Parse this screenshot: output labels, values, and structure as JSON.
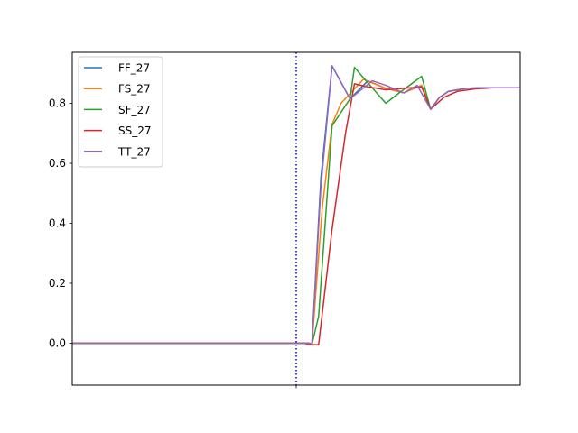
{
  "chart_data": {
    "type": "line",
    "title": "",
    "xlabel": "",
    "ylabel": "",
    "x": [
      0,
      1,
      2,
      3,
      4,
      5,
      6,
      7,
      8,
      9,
      10,
      11,
      12,
      13,
      14,
      15,
      16,
      17,
      18,
      19,
      20,
      21,
      22,
      23,
      24,
      25,
      26,
      27,
      28,
      29,
      30,
      31,
      32,
      33,
      34,
      35,
      36,
      37,
      38,
      39,
      40,
      41,
      42,
      43,
      44,
      45,
      46,
      47,
      48,
      49,
      50,
      51,
      52,
      53,
      54,
      55,
      56,
      57,
      58,
      59,
      60,
      61,
      62,
      63,
      64,
      65,
      66,
      67,
      68,
      69,
      70,
      71,
      72,
      73,
      74,
      75,
      76,
      77,
      78,
      79,
      80,
      81,
      82,
      83,
      84,
      85,
      86,
      87,
      88,
      89,
      90,
      91,
      92,
      93,
      94,
      95,
      96,
      97,
      98,
      99,
      100
    ],
    "xlim": [
      0,
      100
    ],
    "ylim": [
      -0.14,
      0.97
    ],
    "y_ticks": [
      0.0,
      0.2,
      0.4,
      0.6,
      0.8
    ],
    "y_tick_labels": [
      "0.0",
      "0.2",
      "0.4",
      "0.6",
      "0.8"
    ],
    "vline_x": 50,
    "vline_color": "#0000cc",
    "legend_position": "upper-left",
    "grid": false,
    "series": [
      {
        "name": "FF_27",
        "color": "#1f77b4",
        "points": [
          [
            0,
            0
          ],
          [
            53,
            0
          ],
          [
            53.5,
            -0.005
          ],
          [
            55.5,
            0.55
          ],
          [
            58,
            0.925
          ],
          [
            62,
            0.815
          ],
          [
            66,
            0.875
          ],
          [
            70,
            0.85
          ],
          [
            74,
            0.835
          ],
          [
            78,
            0.86
          ],
          [
            80,
            0.78
          ],
          [
            82,
            0.82
          ],
          [
            84,
            0.84
          ],
          [
            88,
            0.85
          ],
          [
            92,
            0.852
          ],
          [
            100,
            0.852
          ]
        ]
      },
      {
        "name": "FS_27",
        "color": "#ff7f0e",
        "points": [
          [
            0,
            0
          ],
          [
            53,
            0
          ],
          [
            53.5,
            -0.005
          ],
          [
            55.8,
            0.45
          ],
          [
            58,
            0.73
          ],
          [
            60,
            0.8
          ],
          [
            65,
            0.88
          ],
          [
            70,
            0.85
          ],
          [
            74,
            0.835
          ],
          [
            78,
            0.86
          ],
          [
            80,
            0.78
          ],
          [
            82,
            0.82
          ],
          [
            84,
            0.84
          ],
          [
            88,
            0.85
          ],
          [
            92,
            0.852
          ],
          [
            100,
            0.852
          ]
        ]
      },
      {
        "name": "SF_27",
        "color": "#2ca02c",
        "points": [
          [
            0,
            0
          ],
          [
            53,
            0
          ],
          [
            53.5,
            -0.005
          ],
          [
            55,
            0.09
          ],
          [
            58,
            0.725
          ],
          [
            62,
            0.815
          ],
          [
            63,
            0.92
          ],
          [
            65,
            0.885
          ],
          [
            70,
            0.8
          ],
          [
            73,
            0.835
          ],
          [
            78,
            0.89
          ],
          [
            80,
            0.78
          ],
          [
            82,
            0.82
          ],
          [
            84,
            0.84
          ],
          [
            88,
            0.85
          ],
          [
            92,
            0.852
          ],
          [
            100,
            0.852
          ]
        ]
      },
      {
        "name": "SS_27",
        "color": "#d62728",
        "points": [
          [
            0,
            0
          ],
          [
            52,
            0
          ],
          [
            52.5,
            -0.005
          ],
          [
            55,
            -0.005
          ],
          [
            58,
            0.38
          ],
          [
            61,
            0.7
          ],
          [
            63,
            0.865
          ],
          [
            66,
            0.855
          ],
          [
            70,
            0.845
          ],
          [
            74,
            0.85
          ],
          [
            78,
            0.855
          ],
          [
            80,
            0.78
          ],
          [
            83,
            0.82
          ],
          [
            86,
            0.84
          ],
          [
            90,
            0.848
          ],
          [
            94,
            0.852
          ],
          [
            100,
            0.852
          ]
        ]
      },
      {
        "name": "TT_27",
        "color": "#9467bd",
        "points": [
          [
            0,
            0
          ],
          [
            53,
            0
          ],
          [
            53.5,
            -0.005
          ],
          [
            55.5,
            0.52
          ],
          [
            58,
            0.925
          ],
          [
            62,
            0.815
          ],
          [
            67,
            0.875
          ],
          [
            70,
            0.86
          ],
          [
            74,
            0.835
          ],
          [
            77,
            0.86
          ],
          [
            80,
            0.78
          ],
          [
            82,
            0.82
          ],
          [
            84,
            0.84
          ],
          [
            88,
            0.85
          ],
          [
            92,
            0.852
          ],
          [
            100,
            0.852
          ]
        ]
      }
    ]
  }
}
